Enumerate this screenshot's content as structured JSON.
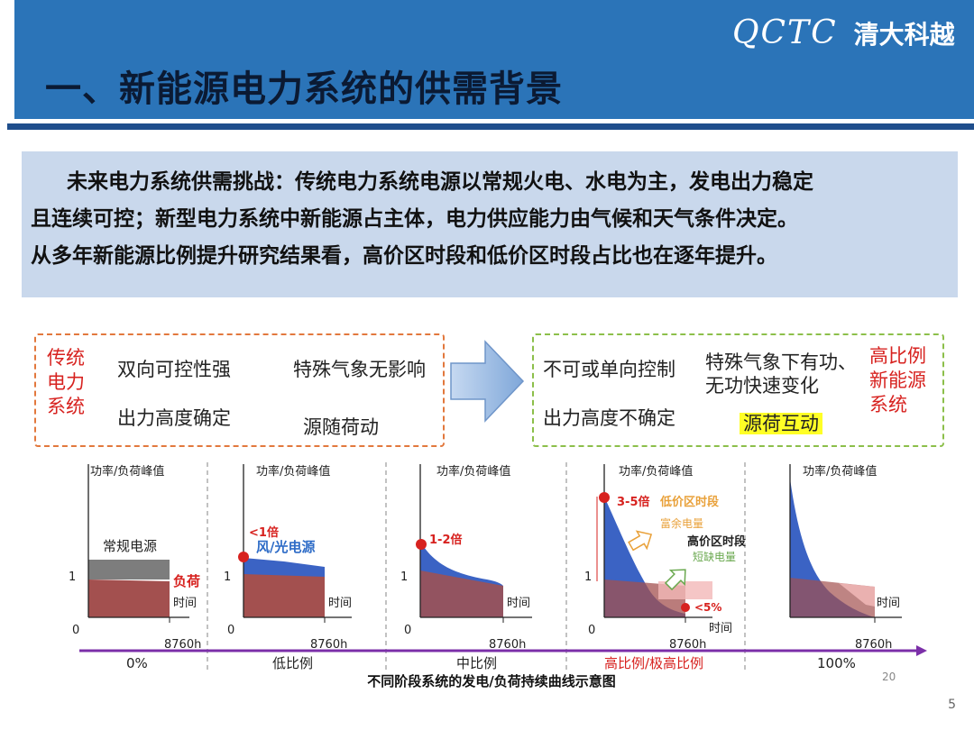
{
  "header": {
    "title": "一、新能源电力系统的供需背景",
    "logo_mark": "QCTC",
    "logo_text": "清大科越"
  },
  "intro": {
    "line1": "未来电力系统供需挑战：传统电力系统电源以常规火电、水电为主，发电出力稳定",
    "line2": "且连续可控；新型电力系统中新能源占主体，电力供应能力由气候和天气条件决定。",
    "line3": "从多年新能源比例提升研究结果看，高价区时段和低价区时段占比也在逐年提升。"
  },
  "traditional_box": {
    "label_lines": [
      "传统",
      "电力",
      "系统"
    ],
    "item1": "双向可控性强",
    "item2": "特殊气象无影响",
    "item3": "出力高度确定",
    "item4": "源随荷动"
  },
  "new_box": {
    "label_lines": [
      "高比例",
      "新能源",
      "系统"
    ],
    "item1": "不可或单向控制",
    "item2_line1": "特殊气象下有功、",
    "item2_line2": "无功快速变化",
    "item3": "出力高度不确定",
    "item4": "源荷互动"
  },
  "stages": {
    "y_axis_label": "功率/负荷峰值",
    "x_axis_label": "时间",
    "x_end_tick": "8760h",
    "origin": "0",
    "y_tick_one": "1",
    "s1": {
      "source": "常规电源",
      "load": "负荷",
      "caption": "0%"
    },
    "s2": {
      "ratio": "<1倍",
      "source": "风/光电源",
      "caption": "低比例"
    },
    "s3": {
      "ratio": "1-2倍",
      "caption": "中比例"
    },
    "s4": {
      "ratio": "3-5倍",
      "low_price": "低价区时段",
      "surplus": "富余电量",
      "high_price": "高价区时段",
      "shortage": "短缺电量",
      "small": "<5%",
      "caption": "高比例/极高比例"
    },
    "s5": {
      "caption": "100%"
    }
  },
  "figure_caption": "不同阶段系统的发电/负荷持续曲线示意图",
  "slide_ref": "20",
  "page_number": "5",
  "colors": {
    "header_blue": "#2b74b8",
    "header_rule": "#1f4e8c",
    "intro_bg": "#c9d8ec",
    "traditional_border": "#e2783d",
    "new_border": "#8cbf4a",
    "renewable_blue": "#3b63c4",
    "load_red": "#a3504f",
    "conventional_gray": "#7d7d7d",
    "timeline_purple": "#7b2fa8",
    "highlight_yellow": "#ffff26"
  }
}
